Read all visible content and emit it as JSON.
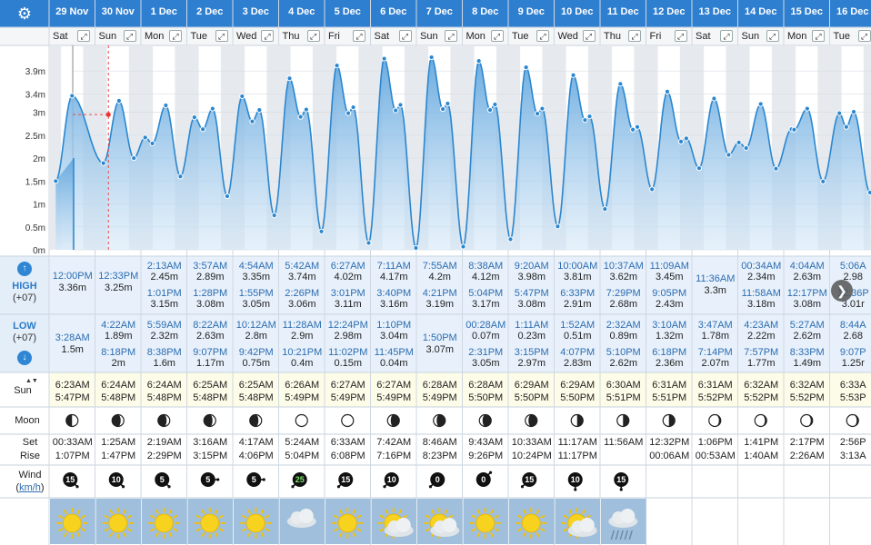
{
  "settings_icon": "gear-icon",
  "side": {
    "y_ticks": [
      "3.9m",
      "3.4m",
      "3m",
      "2.5m",
      "2m",
      "1.5m",
      "1m",
      "0.5m",
      "0m"
    ],
    "high_label": "HIGH",
    "high_tz": "(+07)",
    "low_label": "LOW",
    "low_tz": "(+07)",
    "sun_label": "Sun",
    "moon_label": "Moon",
    "set_label": "Set",
    "rise_label": "Rise",
    "wind_label": "Wind",
    "wind_unit": "km/h",
    "up_arrow_icon": "chevron-up-circle-icon",
    "down_arrow_icon": "chevron-down-circle-icon"
  },
  "colors": {
    "header_bg": "#2f7fd0",
    "row_blue": "#e8f1fb",
    "tide_line": "#2b87d0",
    "tide_fill": "#63a7de",
    "grid": "#c9d3dc"
  },
  "next_icon": "chevron-right-icon",
  "days": [
    {
      "date": "29 Nov",
      "dow": "Sat",
      "high": [
        {
          "t": "12:00PM",
          "h": "3.36m"
        }
      ],
      "low": [
        {
          "t": "3:28AM",
          "h": "1.5m"
        }
      ],
      "sunrise": "6:23AM",
      "sunset": "5:47PM",
      "moon": "moon-first-quarter-icon",
      "moonset": "00:33AM",
      "moonrise": "1:07PM",
      "wind": {
        "speed": "15",
        "dir": "down-right"
      },
      "weather": "sunny-icon"
    },
    {
      "date": "30 Nov",
      "dow": "Sun",
      "high": [
        {
          "t": "12:33PM",
          "h": "3.25m"
        }
      ],
      "low": [
        {
          "t": "4:22AM",
          "h": "1.89m"
        },
        {
          "t": "8:18PM",
          "h": "2m"
        }
      ],
      "sunrise": "6:24AM",
      "sunset": "5:48PM",
      "moon": "moon-waxing-icon",
      "moonset": "1:25AM",
      "moonrise": "1:47PM",
      "wind": {
        "speed": "10",
        "dir": "down-right"
      },
      "weather": "sunny-icon"
    },
    {
      "date": "1 Dec",
      "dow": "Mon",
      "high": [
        {
          "t": "2:13AM",
          "h": "2.45m"
        },
        {
          "t": "1:01PM",
          "h": "3.15m"
        }
      ],
      "low": [
        {
          "t": "5:59AM",
          "h": "2.32m"
        },
        {
          "t": "8:38PM",
          "h": "1.6m"
        }
      ],
      "sunrise": "6:24AM",
      "sunset": "5:48PM",
      "moon": "moon-waxing-icon",
      "moonset": "2:19AM",
      "moonrise": "2:29PM",
      "wind": {
        "speed": "5",
        "dir": "down-right"
      },
      "weather": "sunny-icon"
    },
    {
      "date": "2 Dec",
      "dow": "Tue",
      "high": [
        {
          "t": "3:57AM",
          "h": "2.89m"
        },
        {
          "t": "1:28PM",
          "h": "3.08m"
        }
      ],
      "low": [
        {
          "t": "8:22AM",
          "h": "2.63m"
        },
        {
          "t": "9:07PM",
          "h": "1.17m"
        }
      ],
      "sunrise": "6:25AM",
      "sunset": "5:48PM",
      "moon": "moon-waxing-icon",
      "moonset": "3:16AM",
      "moonrise": "3:15PM",
      "wind": {
        "speed": "5",
        "dir": "right"
      },
      "weather": "sunny-icon"
    },
    {
      "date": "3 Dec",
      "dow": "Wed",
      "high": [
        {
          "t": "4:54AM",
          "h": "3.35m"
        },
        {
          "t": "1:55PM",
          "h": "3.05m"
        }
      ],
      "low": [
        {
          "t": "10:12AM",
          "h": "2.8m"
        },
        {
          "t": "9:42PM",
          "h": "0.75m"
        }
      ],
      "sunrise": "6:25AM",
      "sunset": "5:48PM",
      "moon": "moon-waxing-icon",
      "moonset": "4:17AM",
      "moonrise": "4:06PM",
      "wind": {
        "speed": "5",
        "dir": "right"
      },
      "weather": "sunny-icon"
    },
    {
      "date": "4 Dec",
      "dow": "Thu",
      "high": [
        {
          "t": "5:42AM",
          "h": "3.74m"
        },
        {
          "t": "2:26PM",
          "h": "3.06m"
        }
      ],
      "low": [
        {
          "t": "11:28AM",
          "h": "2.9m"
        },
        {
          "t": "10:21PM",
          "h": "0.4m"
        }
      ],
      "sunrise": "6:26AM",
      "sunset": "5:49PM",
      "moon": "moon-full-icon",
      "moonset": "5:24AM",
      "moonrise": "5:04PM",
      "wind": {
        "speed": "25",
        "dir": "down-left"
      },
      "weather": "cloudy-icon"
    },
    {
      "date": "5 Dec",
      "dow": "Fri",
      "high": [
        {
          "t": "6:27AM",
          "h": "4.02m"
        },
        {
          "t": "3:01PM",
          "h": "3.11m"
        }
      ],
      "low": [
        {
          "t": "12:24PM",
          "h": "2.98m"
        },
        {
          "t": "11:02PM",
          "h": "0.15m"
        }
      ],
      "sunrise": "6:27AM",
      "sunset": "5:49PM",
      "moon": "moon-full-icon",
      "moonset": "6:33AM",
      "moonrise": "6:08PM",
      "wind": {
        "speed": "15",
        "dir": "down-left"
      },
      "weather": "sunny-icon"
    },
    {
      "date": "6 Dec",
      "dow": "Sat",
      "high": [
        {
          "t": "7:11AM",
          "h": "4.17m"
        },
        {
          "t": "3:40PM",
          "h": "3.16m"
        }
      ],
      "low": [
        {
          "t": "1:10PM",
          "h": "3.04m"
        },
        {
          "t": "11:45PM",
          "h": "0.04m"
        }
      ],
      "sunrise": "6:27AM",
      "sunset": "5:49PM",
      "moon": "moon-waning-icon",
      "moonset": "7:42AM",
      "moonrise": "7:16PM",
      "wind": {
        "speed": "10",
        "dir": "down-left"
      },
      "weather": "sun-cloud-icon"
    },
    {
      "date": "7 Dec",
      "dow": "Sun",
      "high": [
        {
          "t": "7:55AM",
          "h": "4.2m"
        },
        {
          "t": "4:21PM",
          "h": "3.19m"
        }
      ],
      "low": [
        {
          "t": "1:50PM",
          "h": "3.07m"
        }
      ],
      "sunrise": "6:28AM",
      "sunset": "5:49PM",
      "moon": "moon-waning-icon",
      "moonset": "8:46AM",
      "moonrise": "8:23PM",
      "wind": {
        "speed": "0",
        "dir": "down-left"
      },
      "weather": "sun-cloud-icon"
    },
    {
      "date": "8 Dec",
      "dow": "Mon",
      "high": [
        {
          "t": "8:38AM",
          "h": "4.12m"
        },
        {
          "t": "5:04PM",
          "h": "3.17m"
        }
      ],
      "low": [
        {
          "t": "00:28AM",
          "h": "0.07m"
        },
        {
          "t": "2:31PM",
          "h": "3.05m"
        }
      ],
      "sunrise": "6:28AM",
      "sunset": "5:50PM",
      "moon": "moon-waning-icon",
      "moonset": "9:43AM",
      "moonrise": "9:26PM",
      "wind": {
        "speed": "0",
        "dir": "up-right"
      },
      "weather": "sunny-icon"
    },
    {
      "date": "9 Dec",
      "dow": "Tue",
      "high": [
        {
          "t": "9:20AM",
          "h": "3.98m"
        },
        {
          "t": "5:47PM",
          "h": "3.08m"
        }
      ],
      "low": [
        {
          "t": "1:11AM",
          "h": "0.23m"
        },
        {
          "t": "3:15PM",
          "h": "2.97m"
        }
      ],
      "sunrise": "6:29AM",
      "sunset": "5:50PM",
      "moon": "moon-waning-icon",
      "moonset": "10:33AM",
      "moonrise": "10:24PM",
      "wind": {
        "speed": "15",
        "dir": "down-left"
      },
      "weather": "sunny-icon"
    },
    {
      "date": "10 Dec",
      "dow": "Wed",
      "high": [
        {
          "t": "10:00AM",
          "h": "3.81m"
        },
        {
          "t": "6:33PM",
          "h": "2.91m"
        }
      ],
      "low": [
        {
          "t": "1:52AM",
          "h": "0.51m"
        },
        {
          "t": "4:07PM",
          "h": "2.83m"
        }
      ],
      "sunrise": "6:29AM",
      "sunset": "5:50PM",
      "moon": "moon-last-quarter-icon",
      "moonset": "11:17AM",
      "moonrise": "11:17PM",
      "wind": {
        "speed": "10",
        "dir": "down"
      },
      "weather": "sun-cloud-icon"
    },
    {
      "date": "11 Dec",
      "dow": "Thu",
      "high": [
        {
          "t": "10:37AM",
          "h": "3.62m"
        },
        {
          "t": "7:29PM",
          "h": "2.68m"
        }
      ],
      "low": [
        {
          "t": "2:32AM",
          "h": "0.89m"
        },
        {
          "t": "5:10PM",
          "h": "2.62m"
        }
      ],
      "sunrise": "6:30AM",
      "sunset": "5:51PM",
      "moon": "moon-last-quarter-icon",
      "moonset": "11:56AM",
      "moonrise": "",
      "wind": {
        "speed": "15",
        "dir": "down"
      },
      "weather": "rain-icon"
    },
    {
      "date": "12 Dec",
      "dow": "Fri",
      "high": [
        {
          "t": "11:09AM",
          "h": "3.45m"
        },
        {
          "t": "9:05PM",
          "h": "2.43m"
        }
      ],
      "low": [
        {
          "t": "3:10AM",
          "h": "1.32m"
        },
        {
          "t": "6:18PM",
          "h": "2.36m"
        }
      ],
      "sunrise": "6:31AM",
      "sunset": "5:51PM",
      "moon": "moon-last-quarter-icon",
      "moonset": "12:32PM",
      "moonrise": "00:06AM",
      "wind": null,
      "weather": null
    },
    {
      "date": "13 Dec",
      "dow": "Sat",
      "high": [
        {
          "t": "11:36AM",
          "h": "3.3m"
        }
      ],
      "low": [
        {
          "t": "3:47AM",
          "h": "1.78m"
        },
        {
          "t": "7:14PM",
          "h": "2.07m"
        }
      ],
      "sunrise": "6:31AM",
      "sunset": "5:52PM",
      "moon": "moon-waning-crescent-icon",
      "moonset": "1:06PM",
      "moonrise": "00:53AM",
      "wind": null,
      "weather": null
    },
    {
      "date": "14 Dec",
      "dow": "Sun",
      "high": [
        {
          "t": "00:34AM",
          "h": "2.34m"
        },
        {
          "t": "11:58AM",
          "h": "3.18m"
        }
      ],
      "low": [
        {
          "t": "4:23AM",
          "h": "2.22m"
        },
        {
          "t": "7:57PM",
          "h": "1.77m"
        }
      ],
      "sunrise": "6:32AM",
      "sunset": "5:52PM",
      "moon": "moon-waning-crescent-icon",
      "moonset": "1:41PM",
      "moonrise": "1:40AM",
      "wind": null,
      "weather": null
    },
    {
      "date": "15 Dec",
      "dow": "Mon",
      "high": [
        {
          "t": "4:04AM",
          "h": "2.63m"
        },
        {
          "t": "12:17PM",
          "h": "3.08m"
        }
      ],
      "low": [
        {
          "t": "5:27AM",
          "h": "2.62m"
        },
        {
          "t": "8:33PM",
          "h": "1.49m"
        }
      ],
      "sunrise": "6:32AM",
      "sunset": "5:52PM",
      "moon": "moon-waning-crescent-icon",
      "moonset": "2:17PM",
      "moonrise": "2:26AM",
      "wind": null,
      "weather": null
    },
    {
      "date": "16 Dec",
      "dow": "Tue",
      "high": [
        {
          "t": "5:06A",
          "h": "2.98"
        },
        {
          "t": "12:36P",
          "h": "3.01r"
        }
      ],
      "low": [
        {
          "t": "8:44A",
          "h": "2.68"
        },
        {
          "t": "9:07P",
          "h": "1.25r"
        }
      ],
      "sunrise": "6:33A",
      "sunset": "5:53P",
      "moon": "moon-waning-crescent-icon",
      "moonset": "2:56P",
      "moonrise": "3:13A",
      "wind": null,
      "weather": null
    }
  ],
  "chart_data": {
    "type": "line",
    "title": "",
    "ylabel": "",
    "y_ticks": [
      "0m",
      "0.5m",
      "1m",
      "1.5m",
      "2m",
      "2.5m",
      "3m",
      "3.4m",
      "3.9m"
    ],
    "ylim": [
      0,
      4.3
    ],
    "series": [
      {
        "points": [
          {
            "day": 0,
            "time": "3:28AM",
            "h": 1.5
          },
          {
            "day": 0,
            "time": "12:00PM",
            "h": 3.36
          },
          {
            "day": 1,
            "time": "4:22AM",
            "h": 1.89
          },
          {
            "day": 1,
            "time": "12:33PM",
            "h": 3.25
          },
          {
            "day": 1,
            "time": "8:18PM",
            "h": 2.0
          },
          {
            "day": 2,
            "time": "2:13AM",
            "h": 2.45
          },
          {
            "day": 2,
            "time": "5:59AM",
            "h": 2.32
          },
          {
            "day": 2,
            "time": "1:01PM",
            "h": 3.15
          },
          {
            "day": 2,
            "time": "8:38PM",
            "h": 1.6
          },
          {
            "day": 3,
            "time": "3:57AM",
            "h": 2.89
          },
          {
            "day": 3,
            "time": "8:22AM",
            "h": 2.63
          },
          {
            "day": 3,
            "time": "1:28PM",
            "h": 3.08
          },
          {
            "day": 3,
            "time": "9:07PM",
            "h": 1.17
          },
          {
            "day": 4,
            "time": "4:54AM",
            "h": 3.35
          },
          {
            "day": 4,
            "time": "10:12AM",
            "h": 2.8
          },
          {
            "day": 4,
            "time": "1:55PM",
            "h": 3.05
          },
          {
            "day": 4,
            "time": "9:42PM",
            "h": 0.75
          },
          {
            "day": 5,
            "time": "5:42AM",
            "h": 3.74
          },
          {
            "day": 5,
            "time": "11:28AM",
            "h": 2.9
          },
          {
            "day": 5,
            "time": "2:26PM",
            "h": 3.06
          },
          {
            "day": 5,
            "time": "10:21PM",
            "h": 0.4
          },
          {
            "day": 6,
            "time": "6:27AM",
            "h": 4.02
          },
          {
            "day": 6,
            "time": "12:24PM",
            "h": 2.98
          },
          {
            "day": 6,
            "time": "3:01PM",
            "h": 3.11
          },
          {
            "day": 6,
            "time": "11:02PM",
            "h": 0.15
          },
          {
            "day": 7,
            "time": "7:11AM",
            "h": 4.17
          },
          {
            "day": 7,
            "time": "1:10PM",
            "h": 3.04
          },
          {
            "day": 7,
            "time": "3:40PM",
            "h": 3.16
          },
          {
            "day": 7,
            "time": "11:45PM",
            "h": 0.04
          },
          {
            "day": 8,
            "time": "7:55AM",
            "h": 4.2
          },
          {
            "day": 8,
            "time": "1:50PM",
            "h": 3.07
          },
          {
            "day": 8,
            "time": "4:21PM",
            "h": 3.19
          },
          {
            "day": 9,
            "time": "00:28AM",
            "h": 0.07
          },
          {
            "day": 9,
            "time": "8:38AM",
            "h": 4.12
          },
          {
            "day": 9,
            "time": "2:31PM",
            "h": 3.05
          },
          {
            "day": 9,
            "time": "5:04PM",
            "h": 3.17
          },
          {
            "day": 10,
            "time": "1:11AM",
            "h": 0.23
          },
          {
            "day": 10,
            "time": "9:20AM",
            "h": 3.98
          },
          {
            "day": 10,
            "time": "3:15PM",
            "h": 2.97
          },
          {
            "day": 10,
            "time": "5:47PM",
            "h": 3.08
          },
          {
            "day": 11,
            "time": "1:52AM",
            "h": 0.51
          },
          {
            "day": 11,
            "time": "10:00AM",
            "h": 3.81
          },
          {
            "day": 11,
            "time": "4:07PM",
            "h": 2.83
          },
          {
            "day": 11,
            "time": "6:33PM",
            "h": 2.91
          },
          {
            "day": 12,
            "time": "2:32AM",
            "h": 0.89
          },
          {
            "day": 12,
            "time": "10:37AM",
            "h": 3.62
          },
          {
            "day": 12,
            "time": "5:10PM",
            "h": 2.62
          },
          {
            "day": 12,
            "time": "7:29PM",
            "h": 2.68
          },
          {
            "day": 13,
            "time": "3:10AM",
            "h": 1.32
          },
          {
            "day": 13,
            "time": "11:09AM",
            "h": 3.45
          },
          {
            "day": 13,
            "time": "6:18PM",
            "h": 2.36
          },
          {
            "day": 13,
            "time": "9:05PM",
            "h": 2.43
          },
          {
            "day": 14,
            "time": "3:47AM",
            "h": 1.78
          },
          {
            "day": 14,
            "time": "11:36AM",
            "h": 3.3
          },
          {
            "day": 14,
            "time": "7:14PM",
            "h": 2.07
          },
          {
            "day": 15,
            "time": "00:34AM",
            "h": 2.34
          },
          {
            "day": 15,
            "time": "4:23AM",
            "h": 2.22
          },
          {
            "day": 15,
            "time": "11:58AM",
            "h": 3.18
          },
          {
            "day": 15,
            "time": "7:57PM",
            "h": 1.77
          },
          {
            "day": 16,
            "time": "4:04AM",
            "h": 2.63
          },
          {
            "day": 16,
            "time": "5:27AM",
            "h": 2.62
          },
          {
            "day": 16,
            "time": "12:17PM",
            "h": 3.08
          },
          {
            "day": 16,
            "time": "8:33PM",
            "h": 1.49
          },
          {
            "day": 17,
            "time": "5:06AM",
            "h": 2.98
          },
          {
            "day": 17,
            "time": "8:44AM",
            "h": 2.68
          },
          {
            "day": 17,
            "time": "12:36PM",
            "h": 3.01
          },
          {
            "day": 17,
            "time": "9:07PM",
            "h": 1.25
          }
        ]
      }
    ],
    "grid": true,
    "current_time_marker": {
      "day": 1,
      "time": "7:00AM",
      "h": 2.95
    }
  }
}
